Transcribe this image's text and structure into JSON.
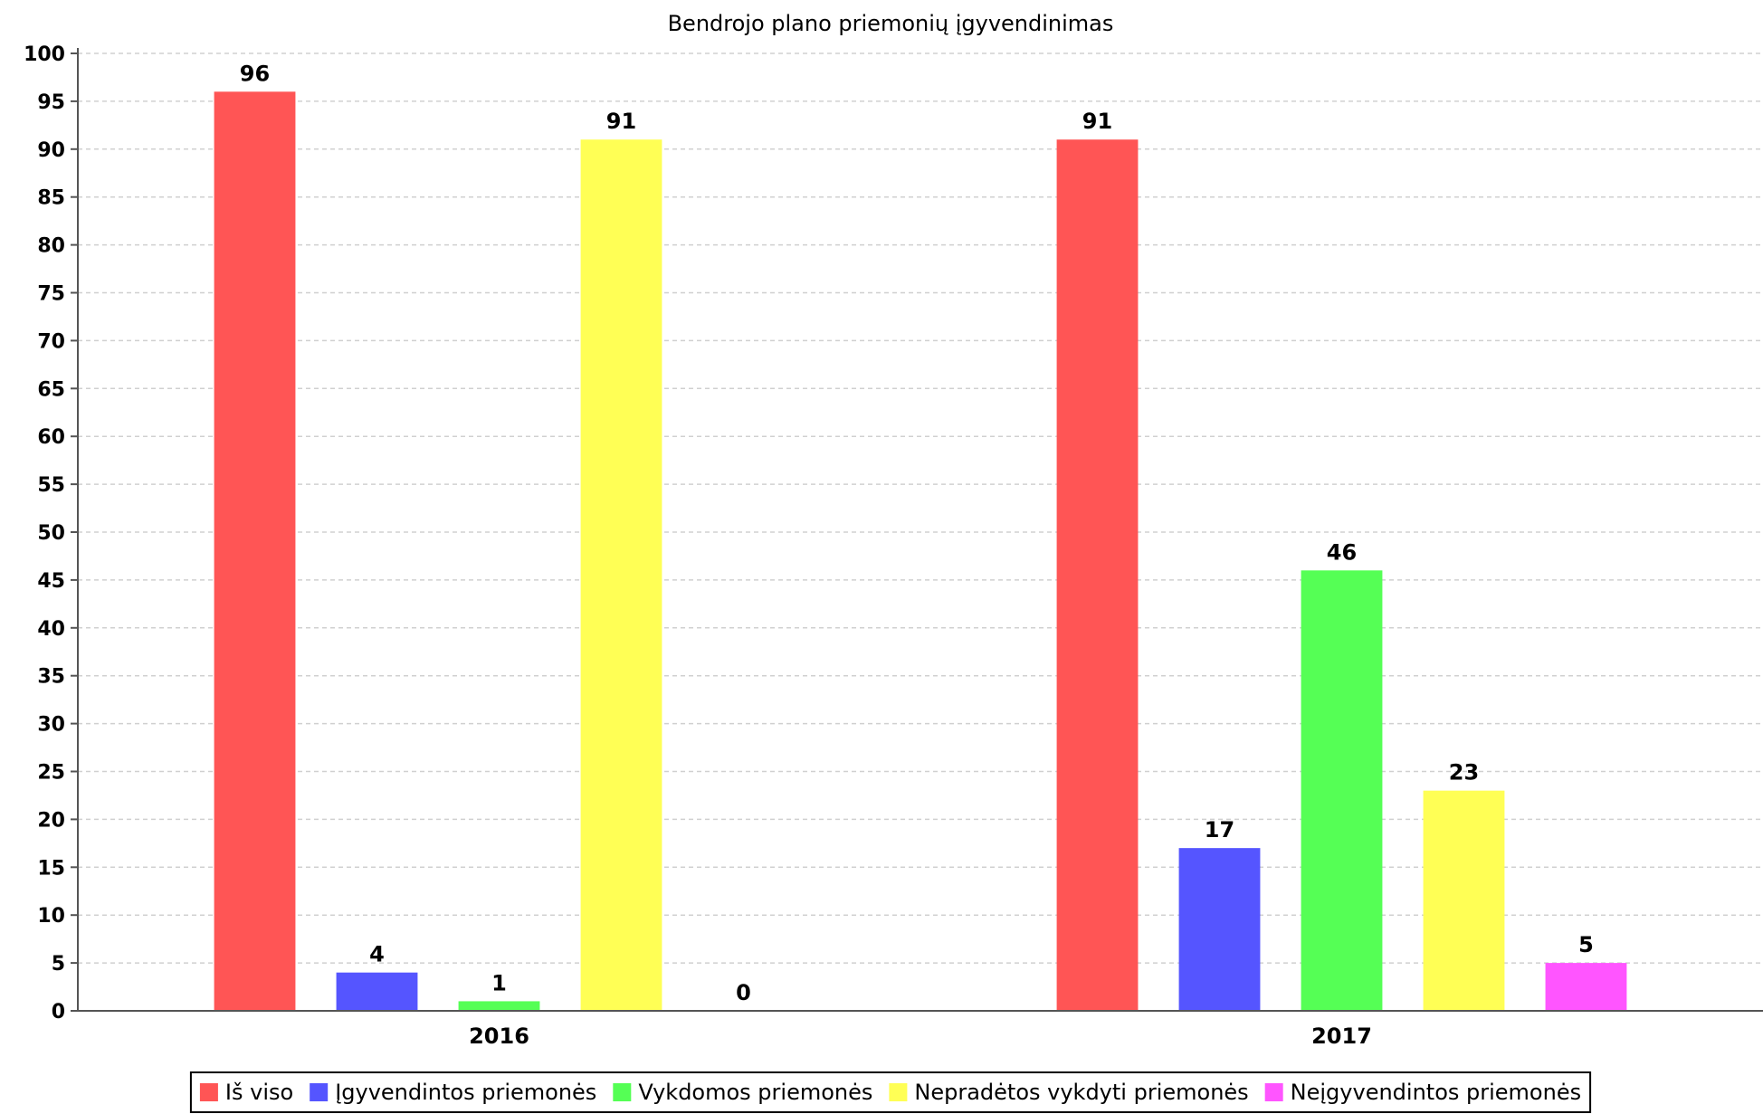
{
  "chart_data": {
    "type": "bar",
    "title": "Bendrojo plano priemonių įgyvendinimas",
    "categories": [
      "2016",
      "2017"
    ],
    "series": [
      {
        "name": "Iš viso",
        "color": "#ff5555",
        "values": [
          96,
          91
        ]
      },
      {
        "name": "Įgyvendintos priemonės",
        "color": "#5555ff",
        "values": [
          4,
          17
        ]
      },
      {
        "name": "Vykdomos priemonės",
        "color": "#55ff55",
        "values": [
          1,
          46
        ]
      },
      {
        "name": "Nepradėtos vykdyti priemonės",
        "color": "#ffff55",
        "values": [
          91,
          23
        ]
      },
      {
        "name": "Neįgyvendintos priemonės",
        "color": "#ff55ff",
        "values": [
          0,
          5
        ]
      }
    ],
    "ylim": [
      0,
      100
    ],
    "ytick_step": 5,
    "grid": true,
    "legend_position": "bottom"
  }
}
